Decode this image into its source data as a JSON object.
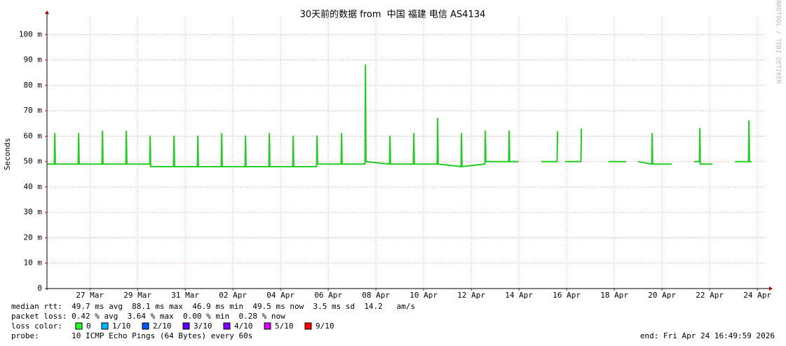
{
  "chart_data": {
    "type": "line",
    "title": "30天前的数据 from  中国 福建 电信 AS4134",
    "y_label": "Seconds",
    "watermark": "RRDTOOL / TOBI OETIKER",
    "xlim": [
      0.2,
      30.38
    ],
    "ylim": [
      0,
      0.107
    ],
    "grid": true,
    "xticks": [
      {
        "value": 2,
        "label": "27 Mar"
      },
      {
        "value": 4,
        "label": "29 Mar"
      },
      {
        "value": 6,
        "label": "31 Mar"
      },
      {
        "value": 8,
        "label": "02 Apr"
      },
      {
        "value": 10,
        "label": "04 Apr"
      },
      {
        "value": 12,
        "label": "06 Apr"
      },
      {
        "value": 14,
        "label": "08 Apr"
      },
      {
        "value": 16,
        "label": "10 Apr"
      },
      {
        "value": 18,
        "label": "12 Apr"
      },
      {
        "value": 20,
        "label": "14 Apr"
      },
      {
        "value": 22,
        "label": "16 Apr"
      },
      {
        "value": 24,
        "label": "18 Apr"
      },
      {
        "value": 26,
        "label": "20 Apr"
      },
      {
        "value": 28,
        "label": "22 Apr"
      },
      {
        "value": 30,
        "label": "24 Apr"
      }
    ],
    "yticks": [
      0,
      {
        "value": 0.01,
        "label": "10 m"
      },
      {
        "value": 0.02,
        "label": "20 m"
      },
      {
        "value": 0.03,
        "label": "30 m"
      },
      {
        "value": 0.04,
        "label": "40 m"
      },
      {
        "value": 0.05,
        "label": "50 m"
      },
      {
        "value": 0.06,
        "label": "60 m"
      },
      {
        "value": 0.07,
        "label": "70 m"
      },
      {
        "value": 0.08,
        "label": "80 m"
      },
      {
        "value": 0.09,
        "label": "90 m"
      },
      {
        "value": 0.1,
        "label": "100 m"
      }
    ],
    "x": [
      0.21,
      0.51,
      0.53,
      0.55,
      1.51,
      1.53,
      1.55,
      2.51,
      2.53,
      2.55,
      3.51,
      3.53,
      3.55,
      4.51,
      4.53,
      4.55,
      5.51,
      5.53,
      5.55,
      6.51,
      6.53,
      6.55,
      7.51,
      7.53,
      7.55,
      8.51,
      8.53,
      8.55,
      9.51,
      9.53,
      9.55,
      10.51,
      10.53,
      10.55,
      11.51,
      11.53,
      11.55,
      12.54,
      12.56,
      12.58,
      13.54,
      13.56,
      13.58,
      14.57,
      14.59,
      14.61,
      15.57,
      15.59,
      15.61,
      16.57,
      16.59,
      16.61,
      17.57,
      17.59,
      17.61,
      18.57,
      18.59,
      18.61,
      19.57,
      19.59,
      19.61,
      20.0,
      20.47,
      20.94,
      21.6,
      21.62,
      21.78,
      21.94,
      22.6,
      22.62,
      23.2,
      23.76,
      24.5,
      24.75,
      25.0,
      25.57,
      25.59,
      25.61,
      26.41,
      26.9,
      27.35,
      27.57,
      27.59,
      27.61,
      28.12,
      28.6,
      29.06,
      29.63,
      29.65,
      29.67,
      29.76
    ],
    "series": [
      {
        "color": "#22cc22",
        "values": [
          0.049,
          0.049,
          0.061,
          0.049,
          0.049,
          0.061,
          0.049,
          0.049,
          0.062,
          0.049,
          0.049,
          0.062,
          0.049,
          0.049,
          0.06,
          0.048,
          0.048,
          0.06,
          0.048,
          0.048,
          0.06,
          0.048,
          0.048,
          0.061,
          0.048,
          0.048,
          0.06,
          0.048,
          0.048,
          0.061,
          0.048,
          0.048,
          0.06,
          0.048,
          0.048,
          0.06,
          0.049,
          0.049,
          0.061,
          0.049,
          0.049,
          0.088,
          0.05,
          0.049,
          0.06,
          0.049,
          0.049,
          0.061,
          0.049,
          0.049,
          0.067,
          0.049,
          0.048,
          0.061,
          0.048,
          0.049,
          0.062,
          0.05,
          0.05,
          0.062,
          0.05,
          0.05,
          null,
          0.05,
          0.05,
          0.062,
          null,
          0.05,
          0.05,
          0.063,
          null,
          0.05,
          0.05,
          null,
          0.05,
          0.049,
          0.061,
          0.049,
          0.049,
          null,
          0.05,
          0.05,
          0.063,
          0.049,
          0.049,
          null,
          0.05,
          0.05,
          0.066,
          0.05,
          0.05
        ]
      }
    ],
    "stats": [
      "median rtt:  49.7 ms avg  88.1 ms max  46.9 ms min  49.5 ms now  3.5 ms sd  14.2   am/s",
      "packet loss: 0.42 % avg  3.64 % max  0.00 % min  0.28 % now"
    ],
    "loss_label": "loss color:",
    "loss_legend": [
      {
        "name": "0",
        "color": "#26ff26"
      },
      {
        "name": "1/10",
        "color": "#00b8ff"
      },
      {
        "name": "2/10",
        "color": "#0059ff"
      },
      {
        "name": "3/10",
        "color": "#5e00ff"
      },
      {
        "name": "4/10",
        "color": "#7e00ff"
      },
      {
        "name": "5/10",
        "color": "#dd00ff"
      },
      {
        "name": "9/10",
        "color": "#ff0000"
      }
    ],
    "probe": "probe:       10 ICMP Echo Pings (64 Bytes) every 60s",
    "end": "end: Fri Apr 24 16:49:59 2026"
  }
}
